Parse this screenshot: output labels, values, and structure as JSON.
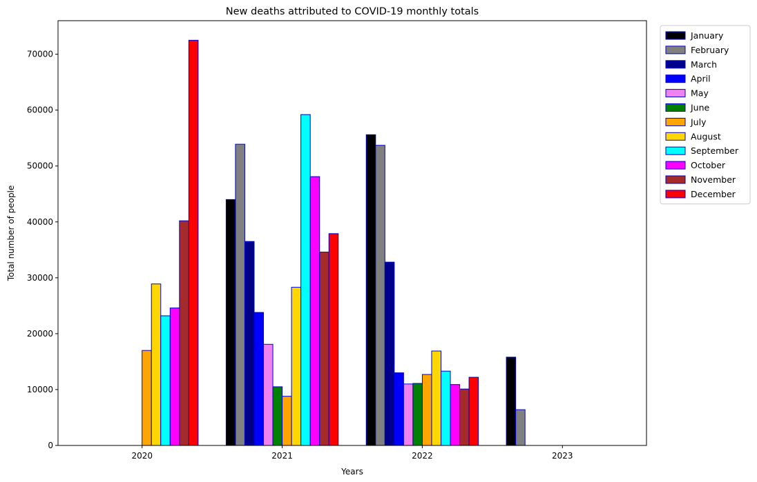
{
  "chart_data": {
    "type": "bar",
    "title": "New deaths attributed to COVID-19 monthly totals",
    "xlabel": "Years",
    "ylabel": "Total number of people",
    "categories": [
      "2020",
      "2021",
      "2022",
      "2023"
    ],
    "ylim": [
      0,
      76000
    ],
    "yticks": [
      0,
      10000,
      20000,
      30000,
      40000,
      50000,
      60000,
      70000
    ],
    "grid": false,
    "legend_position": "outside-right-top",
    "bar_edge_color": "#0000cc",
    "series": [
      {
        "name": "January",
        "color": "#000000",
        "values": [
          0,
          44000,
          55600,
          15800
        ]
      },
      {
        "name": "February",
        "color": "#808080",
        "values": [
          0,
          53900,
          53700,
          6400
        ]
      },
      {
        "name": "March",
        "color": "#00008b",
        "values": [
          0,
          36500,
          32800,
          0
        ]
      },
      {
        "name": "April",
        "color": "#0000ff",
        "values": [
          0,
          23800,
          13000,
          0
        ]
      },
      {
        "name": "May",
        "color": "#ee82ee",
        "values": [
          0,
          18100,
          11000,
          0
        ]
      },
      {
        "name": "June",
        "color": "#008000",
        "values": [
          0,
          10500,
          11100,
          0
        ]
      },
      {
        "name": "July",
        "color": "#ffa500",
        "values": [
          17000,
          8800,
          12700,
          0
        ]
      },
      {
        "name": "August",
        "color": "#ffd700",
        "values": [
          28900,
          28300,
          16900,
          0
        ]
      },
      {
        "name": "September",
        "color": "#00ffff",
        "values": [
          23200,
          59200,
          13300,
          0
        ]
      },
      {
        "name": "October",
        "color": "#ff00ff",
        "values": [
          24600,
          48100,
          10900,
          0
        ]
      },
      {
        "name": "November",
        "color": "#a52a2a",
        "values": [
          40200,
          34600,
          10100,
          0
        ]
      },
      {
        "name": "December",
        "color": "#ff0000",
        "values": [
          72500,
          37900,
          12200,
          0
        ]
      }
    ]
  }
}
